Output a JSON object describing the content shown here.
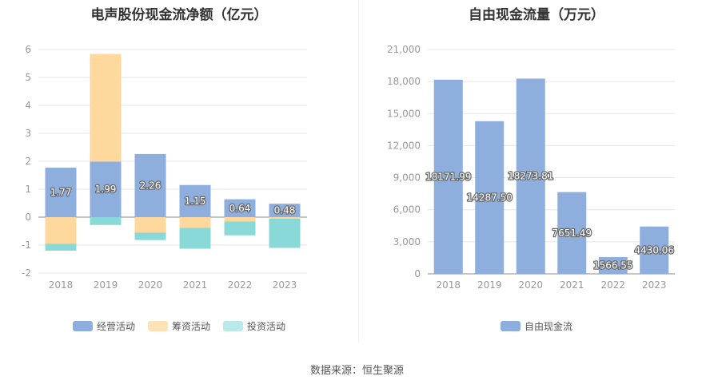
{
  "source": "数据来源：恒生聚源",
  "colors": {
    "operating": "#8eaedd",
    "financing": "#ffd89d",
    "investing": "#8ad9d9",
    "fcf": "#8eaedd"
  },
  "chart_data": [
    {
      "type": "bar",
      "stacked": true,
      "title": "电声股份现金流净额（亿元）",
      "categories": [
        "2018",
        "2019",
        "2020",
        "2021",
        "2022",
        "2023"
      ],
      "ylim": [
        -2,
        6
      ],
      "yticks": [
        -2,
        -1,
        0,
        1,
        2,
        3,
        4,
        5,
        6
      ],
      "legend_position": "bottom",
      "series": [
        {
          "name": "经营活动",
          "values": [
            1.77,
            1.99,
            2.26,
            1.15,
            0.64,
            0.48
          ],
          "labels": [
            "1.77",
            "1.99",
            "2.26",
            "1.15",
            "0.64",
            "0.48"
          ]
        },
        {
          "name": "筹资活动",
          "values": [
            -0.95,
            3.85,
            -0.55,
            -0.38,
            -0.15,
            -0.05
          ]
        },
        {
          "name": "投资活动",
          "values": [
            -0.25,
            -0.28,
            -0.27,
            -0.75,
            -0.5,
            -1.05
          ]
        }
      ]
    },
    {
      "type": "bar",
      "title": "自由现金流量（万元）",
      "categories": [
        "2018",
        "2019",
        "2020",
        "2021",
        "2022",
        "2023"
      ],
      "ylim": [
        0,
        21000
      ],
      "yticks": [
        0,
        3000,
        6000,
        9000,
        12000,
        15000,
        18000,
        21000
      ],
      "ytick_labels": [
        "0",
        "3,000",
        "6,000",
        "9,000",
        "12,000",
        "15,000",
        "18,000",
        "21,000"
      ],
      "legend_position": "bottom",
      "series": [
        {
          "name": "自由现金流",
          "values": [
            18171.99,
            14287.5,
            18273.81,
            7651.49,
            1566.55,
            4430.06
          ],
          "labels": [
            "18171.99",
            "14287.50",
            "18273.81",
            "7651.49",
            "1566.55",
            "4430.06"
          ]
        }
      ]
    }
  ]
}
